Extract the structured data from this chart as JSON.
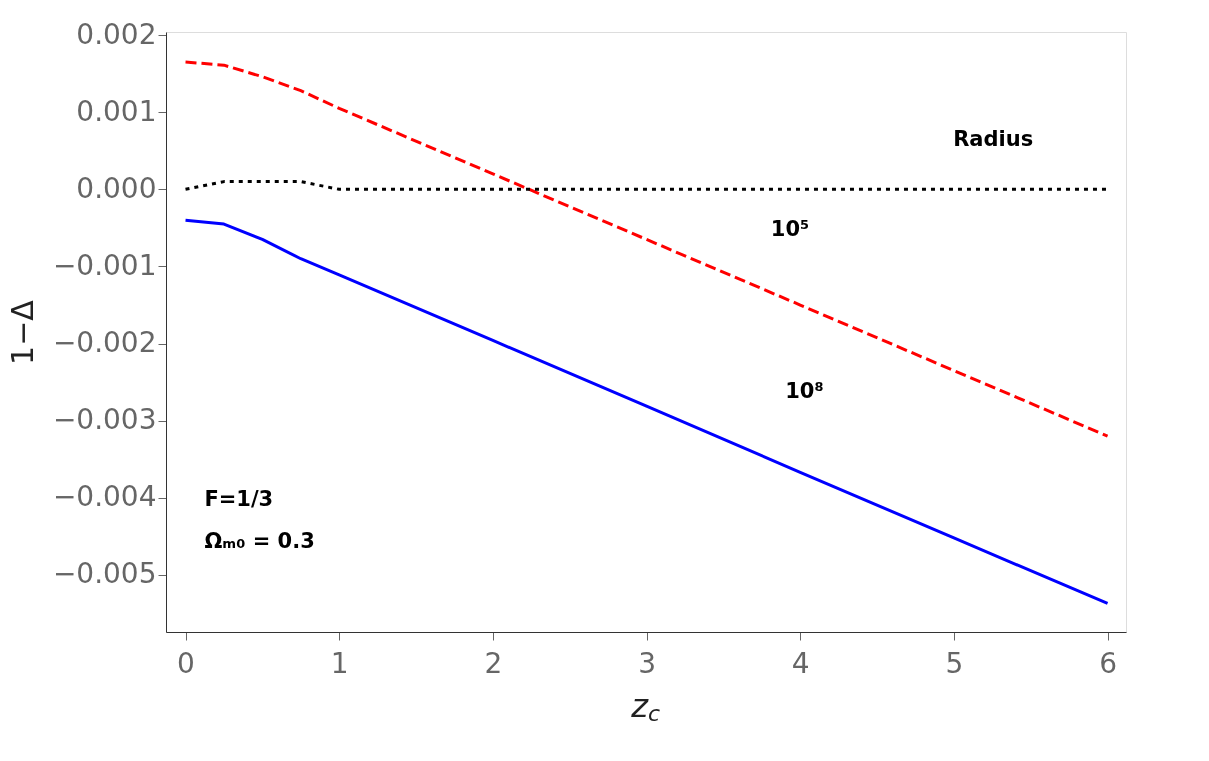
{
  "chart_data": {
    "type": "line",
    "xlabel": "z$_{c}$",
    "ylabel": "1−Δ",
    "xlim": [
      -0.127,
      6.12
    ],
    "ylim": [
      -0.00574,
      0.00204
    ],
    "xticks": [
      0,
      1,
      2,
      3,
      4,
      5,
      6
    ],
    "yticks": [
      {
        "value": -0.005,
        "label": "−0.005"
      },
      {
        "value": -0.004,
        "label": "−0.004"
      },
      {
        "value": -0.003,
        "label": "−0.003"
      },
      {
        "value": -0.002,
        "label": "−0.002"
      },
      {
        "value": -0.001,
        "label": "−0.001"
      },
      {
        "value": 0,
        "label": "0.000"
      },
      {
        "value": 0.001,
        "label": "0.001"
      },
      {
        "value": 0.002,
        "label": "0.002"
      }
    ],
    "grid": false,
    "series": [
      {
        "color": "#ff0000",
        "line_style": "dashed",
        "x": [
          0,
          0.25,
          0.5,
          0.75,
          1,
          2,
          3,
          4,
          5,
          6
        ],
        "values": [
          0.00165,
          0.00161,
          0.00146,
          0.00128,
          0.00105,
          0.0002,
          -0.00065,
          -0.0015,
          -0.00235,
          -0.0032
        ]
      },
      {
        "color": "#0000ff",
        "line_style": "solid",
        "x": [
          0,
          0.25,
          0.5,
          0.75,
          1,
          2,
          3,
          4,
          5,
          6
        ],
        "values": [
          -0.0004,
          -0.00045,
          -0.00065,
          -0.0009,
          -0.00111,
          -0.00196,
          -0.00281,
          -0.00367,
          -0.00452,
          -0.00537
        ]
      },
      {
        "color": "#000000",
        "line_style": "dotted",
        "x": [
          0,
          0.25,
          0.5,
          0.75,
          1,
          1.5,
          2,
          3,
          4,
          5,
          6
        ],
        "values": [
          0,
          0.0001,
          0.0001,
          0.0001,
          0,
          0,
          0,
          0,
          0,
          0,
          0
        ]
      }
    ],
    "annotations": [
      "Radius",
      "10⁵",
      "10⁸",
      "F=1/3",
      "Ωₘ₀ = 0.3"
    ]
  }
}
